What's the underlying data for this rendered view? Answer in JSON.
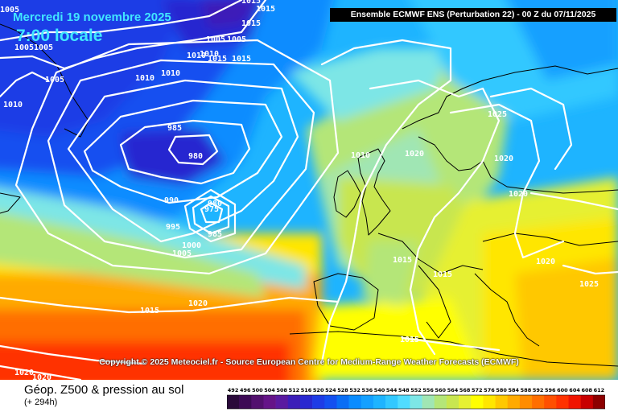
{
  "header": {
    "date": "Mercredi 19 novembre 2025",
    "local_time": "7:00 locale",
    "run_info": "Ensemble ECMWF ENS  (Perturbation 22)  - 00 Z du 07/11/2025"
  },
  "copyright": "Copyright © 2025 Meteociel.fr - Source European Centre for Medium-Range Weather Forecasts (ECMWF)",
  "footer": {
    "title": "Géop. Z500 & pression au sol",
    "lead_time": "(+ 294h)"
  },
  "legend": {
    "labels": [
      "492",
      "496",
      "500",
      "504",
      "508",
      "512",
      "516",
      "520",
      "524",
      "528",
      "532",
      "536",
      "540",
      "544",
      "548",
      "552",
      "556",
      "560",
      "564",
      "568",
      "572",
      "576",
      "580",
      "584",
      "588",
      "592",
      "596",
      "600",
      "604",
      "608",
      "612"
    ],
    "colors": [
      "#2a0a3a",
      "#3d0a55",
      "#52106e",
      "#651488",
      "#5a1aa0",
      "#3c1eb8",
      "#2828d0",
      "#1e3ce6",
      "#1450f0",
      "#0a6ef5",
      "#0a8cff",
      "#14a0ff",
      "#1eb4ff",
      "#32c8ff",
      "#50dcff",
      "#7de6e6",
      "#a0e6b4",
      "#b4e678",
      "#c8e650",
      "#e6f032",
      "#ffff00",
      "#ffe600",
      "#ffc800",
      "#ffaa00",
      "#ff8c00",
      "#ff6e00",
      "#ff5000",
      "#ff3200",
      "#f01400",
      "#c80000",
      "#8c0000"
    ]
  },
  "isobar_labels": [
    {
      "text": "1005"
    },
    {
      "text": "1005"
    },
    {
      "text": "1005"
    },
    {
      "text": "1005"
    },
    {
      "text": "1010"
    },
    {
      "text": "1010"
    },
    {
      "text": "1010"
    },
    {
      "text": "1010"
    },
    {
      "text": "1015"
    },
    {
      "text": "1015"
    },
    {
      "text": "1015"
    },
    {
      "text": "1015"
    },
    {
      "text": "1015"
    },
    {
      "text": "1005"
    },
    {
      "text": "1005"
    },
    {
      "text": "1010"
    },
    {
      "text": "985"
    },
    {
      "text": "980"
    },
    {
      "text": "990"
    },
    {
      "text": "995"
    },
    {
      "text": "980"
    },
    {
      "text": "975"
    },
    {
      "text": "985"
    },
    {
      "text": "1000"
    },
    {
      "text": "1005"
    },
    {
      "text": "1010"
    },
    {
      "text": "1020"
    },
    {
      "text": "1025"
    },
    {
      "text": "1020"
    },
    {
      "text": "1020"
    },
    {
      "text": "1020"
    },
    {
      "text": "1025"
    },
    {
      "text": "1015"
    },
    {
      "text": "1015"
    },
    {
      "text": "1015"
    },
    {
      "text": "1020"
    },
    {
      "text": "1015"
    },
    {
      "text": "1020"
    },
    {
      "text": "1020"
    }
  ],
  "colors": {
    "isobar": "#ffffff",
    "coast": "#000000",
    "run_info_bg": "#000000"
  }
}
